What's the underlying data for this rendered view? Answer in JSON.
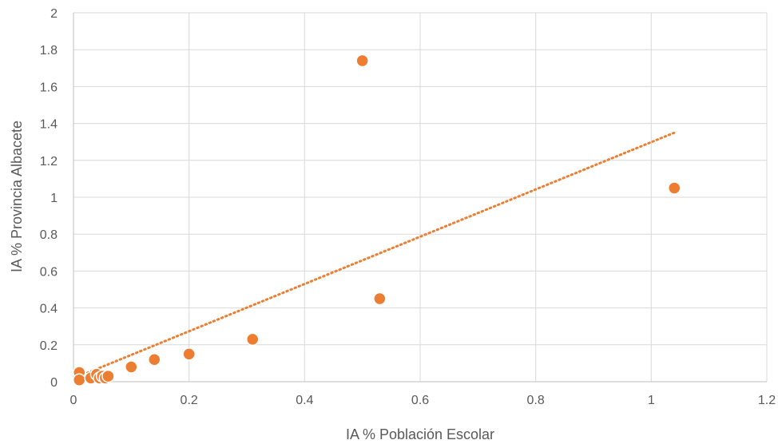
{
  "chart_data": {
    "type": "scatter",
    "xlabel": "IA % Población Escolar",
    "ylabel": "IA % Provincia Albacete",
    "xlim": [
      0,
      1.2
    ],
    "ylim": [
      0,
      2
    ],
    "xticks": [
      0,
      0.2,
      0.4,
      0.6,
      0.8,
      1,
      1.2
    ],
    "yticks": [
      0,
      0.2,
      0.4,
      0.6,
      0.8,
      1,
      1.2,
      1.4,
      1.6,
      1.8,
      2
    ],
    "xtick_labels": [
      "0",
      "0.2",
      "0.4",
      "0.6",
      "0.8",
      "1",
      "1.2"
    ],
    "ytick_labels": [
      "0",
      "0.2",
      "0.4",
      "0.6",
      "0.8",
      "1",
      "1.2",
      "1.4",
      "1.6",
      "1.8",
      "2"
    ],
    "grid": true,
    "legend": "none",
    "marker_color": "#ED7D31",
    "trendline": {
      "type": "linear",
      "style": "dotted",
      "color": "#ED7D31",
      "x_start": 0.01,
      "x_end": 1.04,
      "y_start": 0.03,
      "y_end": 1.35
    },
    "points": [
      {
        "x": 0.01,
        "y": 0.05
      },
      {
        "x": 0.01,
        "y": 0.01
      },
      {
        "x": 0.03,
        "y": 0.02
      },
      {
        "x": 0.04,
        "y": 0.04
      },
      {
        "x": 0.045,
        "y": 0.02
      },
      {
        "x": 0.05,
        "y": 0.03
      },
      {
        "x": 0.055,
        "y": 0.02
      },
      {
        "x": 0.06,
        "y": 0.03
      },
      {
        "x": 0.1,
        "y": 0.08
      },
      {
        "x": 0.14,
        "y": 0.12
      },
      {
        "x": 0.2,
        "y": 0.15
      },
      {
        "x": 0.31,
        "y": 0.23
      },
      {
        "x": 0.5,
        "y": 1.74
      },
      {
        "x": 0.53,
        "y": 0.45
      },
      {
        "x": 1.04,
        "y": 1.05
      }
    ]
  }
}
